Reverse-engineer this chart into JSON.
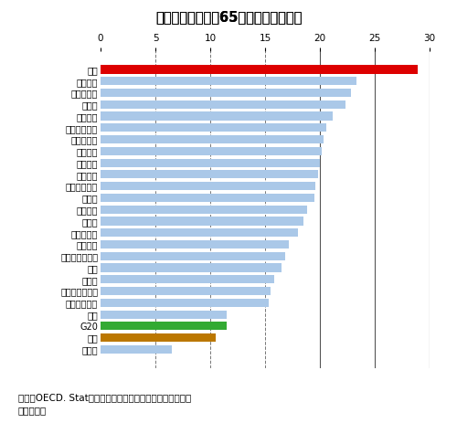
{
  "title": "図７　世界各国の65歳以上の人口割合",
  "countries": [
    "日本",
    "イタリア",
    "ポルトガル",
    "ドイツ",
    "フランス",
    "スウェーデン",
    "デンマーク",
    "スペイン",
    "オランダ",
    "ベルギー",
    "オーストリア",
    "スイス",
    "イギリス",
    "カナダ",
    "ノルウェー",
    "アメリカ",
    "オーストラリア",
    "韓国",
    "ロシア",
    "ルクセンブルグ",
    "アイルランド",
    "中国",
    "G20",
    "世界",
    "インド"
  ],
  "values": [
    28.9,
    23.3,
    22.8,
    22.3,
    21.2,
    20.6,
    20.3,
    20.2,
    20.0,
    19.8,
    19.6,
    19.5,
    18.8,
    18.5,
    18.0,
    17.2,
    16.8,
    16.5,
    15.8,
    15.5,
    15.3,
    11.5,
    11.5,
    10.5,
    6.5
  ],
  "colors": [
    "#dd0000",
    "#aac8e8",
    "#aac8e8",
    "#aac8e8",
    "#aac8e8",
    "#aac8e8",
    "#aac8e8",
    "#aac8e8",
    "#aac8e8",
    "#aac8e8",
    "#aac8e8",
    "#aac8e8",
    "#aac8e8",
    "#aac8e8",
    "#aac8e8",
    "#aac8e8",
    "#aac8e8",
    "#aac8e8",
    "#aac8e8",
    "#aac8e8",
    "#aac8e8",
    "#aac8e8",
    "#33aa33",
    "#bb7700",
    "#aac8e8"
  ],
  "xlim": [
    0,
    30
  ],
  "xticks": [
    0,
    5,
    10,
    15,
    20,
    25,
    30
  ],
  "dashed_vlines": [
    5,
    10,
    15
  ],
  "solid_vlines": [
    20,
    25,
    30
  ],
  "grid_color": "#777777",
  "solid_line_color": "#555555",
  "footnote_line1": "出所：OECD. Statデータをもとに医薬産業政策研究所にて",
  "footnote_line2": "　　　作成",
  "background_color": "#ffffff"
}
